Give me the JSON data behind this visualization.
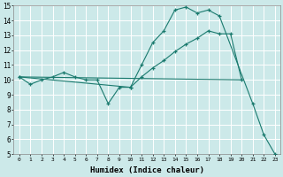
{
  "xlabel": "Humidex (Indice chaleur)",
  "xlim": [
    -0.5,
    23.5
  ],
  "ylim": [
    5,
    15
  ],
  "yticks": [
    5,
    6,
    7,
    8,
    9,
    10,
    11,
    12,
    13,
    14,
    15
  ],
  "bg_color": "#cce9e9",
  "grid_color": "#ffffff",
  "line_color": "#1a7a6e",
  "curve1_x": [
    0,
    1,
    2,
    3,
    4,
    5,
    6,
    7,
    8,
    9,
    10,
    11,
    12,
    13,
    14,
    15,
    16,
    17,
    18,
    21,
    22,
    23
  ],
  "curve1_y": [
    10.2,
    9.7,
    10.0,
    10.2,
    10.5,
    10.2,
    10.0,
    10.0,
    8.4,
    9.5,
    9.5,
    11.0,
    12.5,
    13.3,
    14.7,
    14.9,
    14.5,
    14.7,
    14.3,
    8.4,
    6.3,
    5.0
  ],
  "curve2_x": [
    0,
    10,
    11,
    12,
    13,
    14,
    15,
    16,
    17,
    18,
    19,
    20
  ],
  "curve2_y": [
    10.2,
    9.5,
    10.2,
    10.8,
    11.3,
    11.9,
    12.4,
    12.8,
    13.3,
    13.1,
    13.1,
    10.0
  ],
  "curve3_x": [
    0,
    20
  ],
  "curve3_y": [
    10.2,
    10.0
  ],
  "curve4_x": [
    8,
    9
  ],
  "curve4_y": [
    8.4,
    8.7
  ]
}
